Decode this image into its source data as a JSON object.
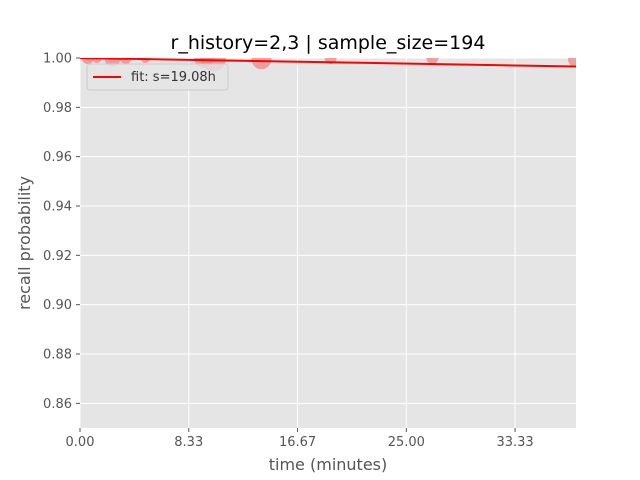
{
  "chart_data": {
    "type": "scatter",
    "title": "r_history=2,3 | sample_size=194",
    "xlabel": "time (minutes)",
    "ylabel": "recall probability",
    "xlim": [
      0,
      38
    ],
    "ylim": [
      0.85,
      1.0
    ],
    "x_ticks": [
      0,
      8.333,
      16.667,
      25,
      33.333
    ],
    "x_tick_labels": [
      "0.00",
      "8.33",
      "16.67",
      "25.00",
      "33.33"
    ],
    "y_ticks": [
      0.86,
      0.88,
      0.9,
      0.92,
      0.94,
      0.96,
      0.98,
      1.0
    ],
    "y_tick_labels": [
      "0.86",
      "0.88",
      "0.90",
      "0.92",
      "0.94",
      "0.96",
      "0.98",
      "1.00"
    ],
    "grid": true,
    "legend_position": "top-left",
    "series": [
      {
        "name": "fit: s=19.08h",
        "kind": "line",
        "color": "#ff0000",
        "x": [
          0,
          38
        ],
        "y": [
          1.0,
          0.99655
        ]
      },
      {
        "kind": "scatter",
        "color": "#f08080",
        "points": [
          {
            "x": 0.6,
            "y": 1.0,
            "size": 6
          },
          {
            "x": 1.3,
            "y": 1.0,
            "size": 5
          },
          {
            "x": 2.5,
            "y": 0.9998,
            "size": 8
          },
          {
            "x": 3.5,
            "y": 1.0,
            "size": 6
          },
          {
            "x": 5.0,
            "y": 1.0,
            "size": 5
          },
          {
            "x": 9.5,
            "y": 1.0,
            "size": 10
          },
          {
            "x": 10.2,
            "y": 0.9998,
            "size": 13
          },
          {
            "x": 13.9,
            "y": 0.9995,
            "size": 10
          },
          {
            "x": 19.2,
            "y": 1.0,
            "size": 6
          },
          {
            "x": 27.0,
            "y": 1.0,
            "size": 6
          },
          {
            "x": 38.0,
            "y": 0.9995,
            "size": 8
          }
        ]
      }
    ]
  }
}
